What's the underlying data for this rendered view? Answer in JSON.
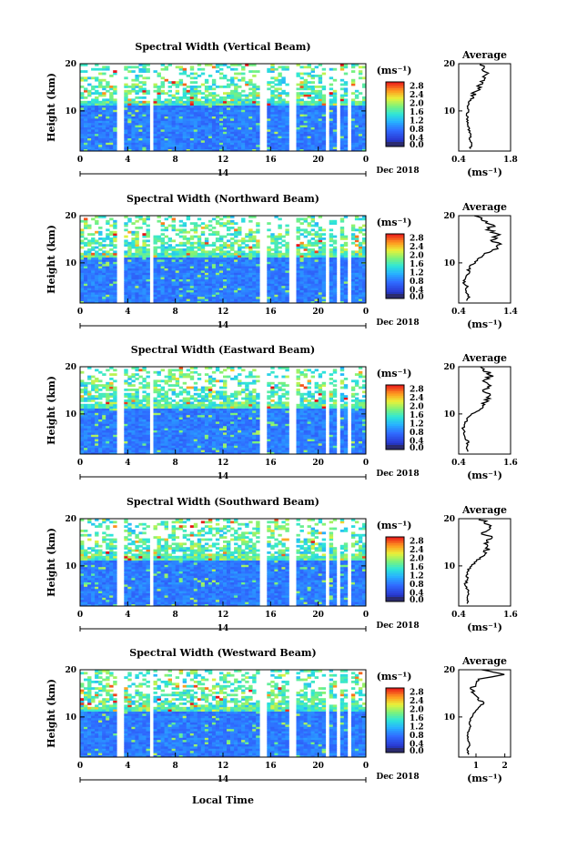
{
  "chart_data": [
    {
      "type": "heatmap",
      "title": "Spectral Width (Vertical Beam)",
      "ylabel": "Height (km)",
      "ylim": [
        1.5,
        20
      ],
      "y_ticks": [
        "20",
        "10"
      ],
      "x_ticks": [
        "0",
        "4",
        "8",
        "12",
        "16",
        "20",
        "0"
      ],
      "xlim": [
        0,
        24
      ],
      "date_day": "14",
      "date_label": "Dec 2018",
      "colorbar": {
        "unit": "(ms⁻¹)",
        "labels": [
          "2.8",
          "2.4",
          "2.0",
          "1.6",
          "1.2",
          "0.8",
          "0.4",
          "0.0"
        ],
        "range": [
          0,
          3.0
        ]
      },
      "data_gaps_hours": [
        [
          3.2,
          3.6
        ],
        [
          5.7,
          6.0
        ],
        [
          15.2,
          15.6
        ],
        [
          17.6,
          18.0
        ],
        [
          20.6,
          20.8
        ],
        [
          21.6,
          21.8
        ],
        [
          22.6,
          22.8
        ]
      ],
      "average": {
        "title": "Average",
        "xlabel": "(ms⁻¹)",
        "x_ticks": [
          "0.4",
          "1.8"
        ],
        "xlim": [
          0.4,
          1.8
        ],
        "y_ticks": [
          "20",
          "10"
        ],
        "height": [
          2,
          3,
          4,
          5,
          6,
          7,
          8,
          9,
          10,
          11,
          12,
          13,
          14,
          15,
          16,
          17,
          18,
          19,
          20
        ],
        "width": [
          0.7,
          0.75,
          0.7,
          0.72,
          0.68,
          0.65,
          0.63,
          0.62,
          0.65,
          0.66,
          0.7,
          0.75,
          0.85,
          0.95,
          1.0,
          1.05,
          1.15,
          1.05,
          1.0
        ]
      }
    },
    {
      "type": "heatmap",
      "title": "Spectral Width (Northward Beam)",
      "ylabel": "Height (km)",
      "ylim": [
        1.5,
        20
      ],
      "y_ticks": [
        "20",
        "10"
      ],
      "x_ticks": [
        "0",
        "4",
        "8",
        "12",
        "16",
        "20",
        "0"
      ],
      "xlim": [
        0,
        24
      ],
      "date_day": "14",
      "date_label": "Dec 2018",
      "colorbar": {
        "unit": "(ms⁻¹)",
        "labels": [
          "2.8",
          "2.4",
          "2.0",
          "1.6",
          "1.2",
          "0.8",
          "0.4",
          "0.0"
        ],
        "range": [
          0,
          3.0
        ]
      },
      "data_gaps_hours": [
        [
          3.2,
          3.6
        ],
        [
          5.7,
          6.0
        ],
        [
          15.2,
          15.6
        ],
        [
          17.6,
          18.0
        ],
        [
          20.6,
          20.8
        ],
        [
          21.6,
          21.8
        ],
        [
          22.6,
          22.8
        ]
      ],
      "average": {
        "title": "Average",
        "xlabel": "(ms⁻¹)",
        "x_ticks": [
          "0.4",
          "1.4"
        ],
        "xlim": [
          0.4,
          1.4
        ],
        "y_ticks": [
          "20",
          "10"
        ],
        "height": [
          2,
          3,
          4,
          5,
          6,
          7,
          8,
          9,
          10,
          11,
          12,
          13,
          14,
          15,
          16,
          17,
          18,
          19,
          20
        ],
        "width": [
          0.55,
          0.6,
          0.52,
          0.55,
          0.5,
          0.55,
          0.58,
          0.6,
          0.7,
          0.8,
          0.9,
          1.1,
          1.15,
          1.05,
          1.2,
          0.95,
          1.1,
          0.85,
          0.7
        ]
      }
    },
    {
      "type": "heatmap",
      "title": "Spectral Width (Eastward Beam)",
      "ylabel": "Height (km)",
      "ylim": [
        1.5,
        20
      ],
      "y_ticks": [
        "20",
        "10"
      ],
      "x_ticks": [
        "0",
        "4",
        "8",
        "12",
        "16",
        "20",
        "0"
      ],
      "xlim": [
        0,
        24
      ],
      "date_day": "14",
      "date_label": "Dec 2018",
      "colorbar": {
        "unit": "(ms⁻¹)",
        "labels": [
          "2.8",
          "2.4",
          "2.0",
          "1.6",
          "1.2",
          "0.8",
          "0.4",
          "0.0"
        ],
        "range": [
          0,
          3.0
        ]
      },
      "data_gaps_hours": [
        [
          3.2,
          3.6
        ],
        [
          5.7,
          6.0
        ],
        [
          15.2,
          15.6
        ],
        [
          17.6,
          18.0
        ],
        [
          20.6,
          20.8
        ],
        [
          21.6,
          21.8
        ],
        [
          22.6,
          22.8
        ]
      ],
      "average": {
        "title": "Average",
        "xlabel": "(ms⁻¹)",
        "x_ticks": [
          "0.4",
          "1.6"
        ],
        "xlim": [
          0.4,
          1.6
        ],
        "y_ticks": [
          "20",
          "10"
        ],
        "height": [
          2,
          3,
          4,
          5,
          6,
          7,
          8,
          9,
          10,
          11,
          12,
          13,
          14,
          15,
          16,
          17,
          18,
          19,
          20
        ],
        "width": [
          0.6,
          0.58,
          0.62,
          0.55,
          0.52,
          0.5,
          0.55,
          0.6,
          0.7,
          0.9,
          1.0,
          1.05,
          1.1,
          0.95,
          1.1,
          1.0,
          1.15,
          1.05,
          0.9
        ]
      }
    },
    {
      "type": "heatmap",
      "title": "Spectral Width (Southward Beam)",
      "ylabel": "Height (km)",
      "ylim": [
        1.5,
        20
      ],
      "y_ticks": [
        "20",
        "10"
      ],
      "x_ticks": [
        "0",
        "4",
        "8",
        "12",
        "16",
        "20",
        "0"
      ],
      "xlim": [
        0,
        24
      ],
      "date_day": "14",
      "date_label": "Dec 2018",
      "colorbar": {
        "unit": "(ms⁻¹)",
        "labels": [
          "2.8",
          "2.4",
          "2.0",
          "1.6",
          "1.2",
          "0.8",
          "0.4",
          "0.0"
        ],
        "range": [
          0,
          3.0
        ]
      },
      "data_gaps_hours": [
        [
          3.2,
          3.6
        ],
        [
          5.7,
          6.0
        ],
        [
          15.2,
          15.6
        ],
        [
          17.6,
          18.0
        ],
        [
          19.0,
          19.2
        ],
        [
          20.6,
          20.8
        ],
        [
          21.6,
          21.8
        ],
        [
          22.6,
          22.8
        ]
      ],
      "average": {
        "title": "Average",
        "xlabel": "(ms⁻¹)",
        "x_ticks": [
          "0.4",
          "1.6"
        ],
        "xlim": [
          0.4,
          1.6
        ],
        "y_ticks": [
          "20",
          "10"
        ],
        "height": [
          2,
          3,
          4,
          5,
          6,
          7,
          8,
          9,
          10,
          11,
          12,
          13,
          14,
          15,
          16,
          17,
          18,
          19,
          20
        ],
        "width": [
          0.62,
          0.58,
          0.65,
          0.6,
          0.55,
          0.6,
          0.58,
          0.62,
          0.7,
          0.8,
          0.95,
          1.0,
          1.1,
          1.05,
          1.15,
          0.95,
          1.2,
          1.05,
          0.9
        ]
      }
    },
    {
      "type": "heatmap",
      "title": "Spectral Width (Westward Beam)",
      "ylabel": "Height (km)",
      "ylim": [
        1.5,
        20
      ],
      "y_ticks": [
        "20",
        "10"
      ],
      "x_ticks": [
        "0",
        "4",
        "8",
        "12",
        "16",
        "20",
        "0"
      ],
      "xlim": [
        0,
        24
      ],
      "date_day": "14",
      "date_label": "Dec 2018",
      "xlabel": "Local Time",
      "colorbar": {
        "unit": "(ms⁻¹)",
        "labels": [
          "2.8",
          "2.4",
          "2.0",
          "1.6",
          "1.2",
          "0.8",
          "0.4",
          "0.0"
        ],
        "range": [
          0,
          3.0
        ]
      },
      "data_gaps_hours": [
        [
          3.2,
          3.6
        ],
        [
          5.7,
          6.0
        ],
        [
          15.2,
          15.6
        ],
        [
          17.6,
          18.0
        ],
        [
          20.6,
          20.8
        ],
        [
          21.6,
          21.8
        ],
        [
          22.6,
          22.8
        ]
      ],
      "average": {
        "title": "Average",
        "xlabel": "(ms⁻¹)",
        "x_ticks": [
          "1",
          "2"
        ],
        "xlim": [
          0.4,
          2.2
        ],
        "y_ticks": [
          "20",
          "10"
        ],
        "height": [
          2,
          3,
          4,
          5,
          6,
          7,
          8,
          9,
          10,
          11,
          12,
          13,
          14,
          15,
          16,
          17,
          18,
          19,
          20
        ],
        "width": [
          0.75,
          0.7,
          0.78,
          0.72,
          0.7,
          0.75,
          0.8,
          0.78,
          0.85,
          0.95,
          1.1,
          1.25,
          1.05,
          0.9,
          0.85,
          1.0,
          1.1,
          2.0,
          1.2
        ]
      }
    }
  ]
}
